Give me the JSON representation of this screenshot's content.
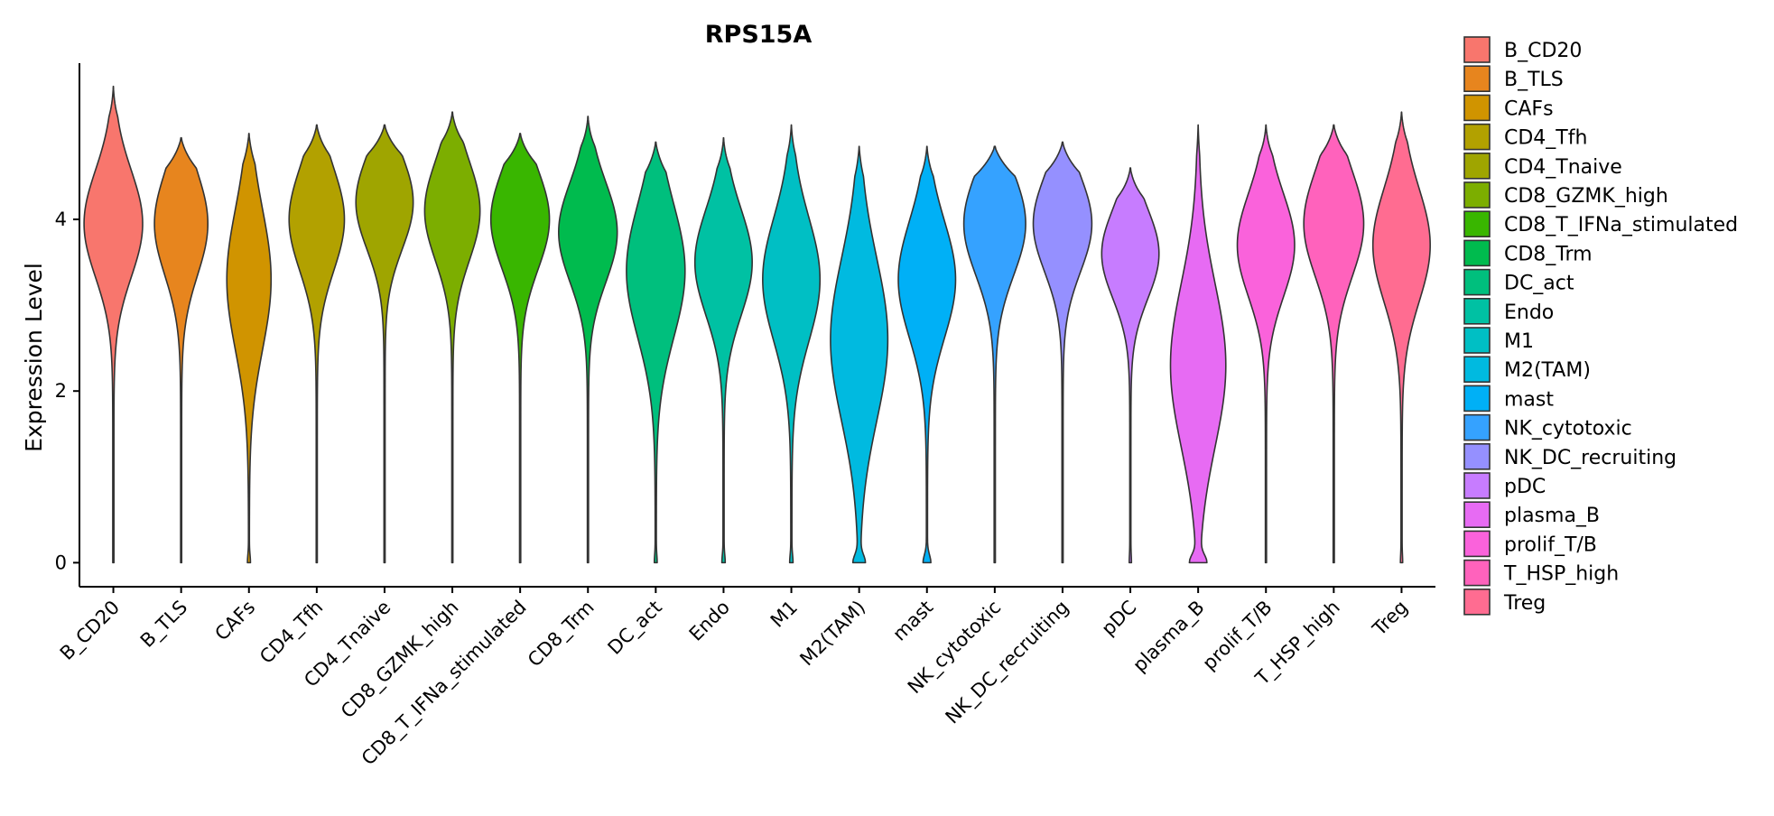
{
  "chart_data": {
    "type": "violin",
    "title": "RPS15A",
    "xlabel": "",
    "ylabel": "Expression Level",
    "ylim": [
      -0.28,
      5.82
    ],
    "yticks": [
      0,
      2,
      4
    ],
    "grid": false,
    "legend_position": "right",
    "categories": [
      "B_CD20",
      "B_TLS",
      "CAFs",
      "CD4_Tfh",
      "CD4_Tnaive",
      "CD8_GZMK_high",
      "CD8_T_IFNa_stimulated",
      "CD8_Trm",
      "DC_act",
      "Endo",
      "M1",
      "M2(TAM)",
      "mast",
      "NK_cytotoxic",
      "NK_DC_recruiting",
      "pDC",
      "plasma_B",
      "prolif_T/B",
      "T_HSP_high",
      "Treg"
    ],
    "series": [
      {
        "name": "B_CD20",
        "color": "#F8766D",
        "min": 0,
        "max": 5.55,
        "mode": 3.95,
        "spread": 0.62,
        "width": 0.9,
        "zero_density": 0
      },
      {
        "name": "B_TLS",
        "color": "#E7851E",
        "min": 0,
        "max": 4.95,
        "mode": 3.95,
        "spread": 0.6,
        "width": 0.82,
        "zero_density": 0
      },
      {
        "name": "CAFs",
        "color": "#D09400",
        "min": 0,
        "max": 5.0,
        "mode": 3.3,
        "spread": 0.82,
        "width": 0.68,
        "zero_density": 0.05
      },
      {
        "name": "CD4_Tfh",
        "color": "#B2A100",
        "min": 0,
        "max": 5.1,
        "mode": 4.0,
        "spread": 0.6,
        "width": 0.85,
        "zero_density": 0
      },
      {
        "name": "CD4_Tnaive",
        "color": "#9FA500",
        "min": 0,
        "max": 5.1,
        "mode": 4.2,
        "spread": 0.55,
        "width": 0.88,
        "zero_density": 0
      },
      {
        "name": "CD8_GZMK_high",
        "color": "#7CAE00",
        "min": 0,
        "max": 5.25,
        "mode": 4.1,
        "spread": 0.58,
        "width": 0.85,
        "zero_density": 0
      },
      {
        "name": "CD8_T_IFNa_stimulated",
        "color": "#39B600",
        "min": 0,
        "max": 5.0,
        "mode": 4.0,
        "spread": 0.58,
        "width": 0.9,
        "zero_density": 0
      },
      {
        "name": "CD8_Trm",
        "color": "#00BB4E",
        "min": 0,
        "max": 5.2,
        "mode": 3.85,
        "spread": 0.58,
        "width": 0.9,
        "zero_density": 0
      },
      {
        "name": "DC_act",
        "color": "#00BF7D",
        "min": 0,
        "max": 4.9,
        "mode": 3.4,
        "spread": 0.78,
        "width": 0.9,
        "zero_density": 0.03
      },
      {
        "name": "Endo",
        "color": "#00C1A3",
        "min": 0,
        "max": 4.95,
        "mode": 3.5,
        "spread": 0.62,
        "width": 0.88,
        "zero_density": 0.04
      },
      {
        "name": "M1",
        "color": "#00BFC4",
        "min": 0,
        "max": 5.1,
        "mode": 3.3,
        "spread": 0.72,
        "width": 0.88,
        "zero_density": 0.04
      },
      {
        "name": "M2(TAM)",
        "color": "#00BAE0",
        "min": 0,
        "max": 4.85,
        "mode": 2.6,
        "spread": 0.95,
        "width": 0.88,
        "zero_density": 0.18
      },
      {
        "name": "mast",
        "color": "#00B0F6",
        "min": 0,
        "max": 4.85,
        "mode": 3.3,
        "spread": 0.68,
        "width": 0.88,
        "zero_density": 0.12
      },
      {
        "name": "NK_cytotoxic",
        "color": "#35A2FF",
        "min": 0,
        "max": 4.85,
        "mode": 3.95,
        "spread": 0.6,
        "width": 0.95,
        "zero_density": 0
      },
      {
        "name": "NK_DC_recruiting",
        "color": "#9590FF",
        "min": 0,
        "max": 4.9,
        "mode": 3.95,
        "spread": 0.56,
        "width": 0.9,
        "zero_density": 0
      },
      {
        "name": "pDC",
        "color": "#C77CFF",
        "min": 0,
        "max": 4.6,
        "mode": 3.6,
        "spread": 0.52,
        "width": 0.88,
        "zero_density": 0.02
      },
      {
        "name": "plasma_B",
        "color": "#E76BF3",
        "min": 0,
        "max": 5.1,
        "mode": 2.3,
        "spread": 0.95,
        "width": 0.85,
        "zero_density": 0.25
      },
      {
        "name": "prolif_T/B",
        "color": "#FA62DB",
        "min": 0,
        "max": 5.1,
        "mode": 3.7,
        "spread": 0.6,
        "width": 0.88,
        "zero_density": 0
      },
      {
        "name": "T_HSP_high",
        "color": "#FF62BC",
        "min": 0,
        "max": 5.1,
        "mode": 3.95,
        "spread": 0.62,
        "width": 0.92,
        "zero_density": 0
      },
      {
        "name": "Treg",
        "color": "#FF6C91",
        "min": 0,
        "max": 5.25,
        "mode": 3.7,
        "spread": 0.66,
        "width": 0.88,
        "zero_density": 0.02
      }
    ]
  }
}
